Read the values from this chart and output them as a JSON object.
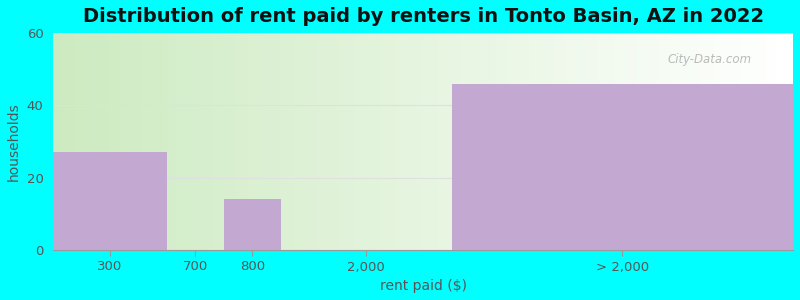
{
  "title": "Distribution of rent paid by renters in Tonto Basin, AZ in 2022",
  "xlabel": "rent paid ($)",
  "ylabel": "households",
  "categories": [
    "300",
    "700",
    "800",
    "2,000",
    "> 2,000"
  ],
  "values": [
    27,
    0,
    14,
    0,
    46
  ],
  "bar_color": "#C3A8D1",
  "ylim": [
    0,
    60
  ],
  "yticks": [
    0,
    20,
    40,
    60
  ],
  "background_color": "#00FFFF",
  "plot_bg_left": "#CCEAC0",
  "plot_bg_right": "#FFFFFF",
  "title_fontsize": 14,
  "axis_label_fontsize": 10,
  "tick_fontsize": 9.5,
  "watermark": "City-Data.com",
  "bar_lefts": [
    0.0,
    1.0,
    1.5,
    2.0,
    3.5
  ],
  "bar_widths": [
    1.0,
    0.5,
    0.5,
    1.5,
    3.0
  ],
  "xlim": [
    0.0,
    6.5
  ],
  "xtick_positions": [
    0.5,
    1.25,
    1.75,
    2.75,
    5.0
  ],
  "grid_color": "#E0E0E0"
}
